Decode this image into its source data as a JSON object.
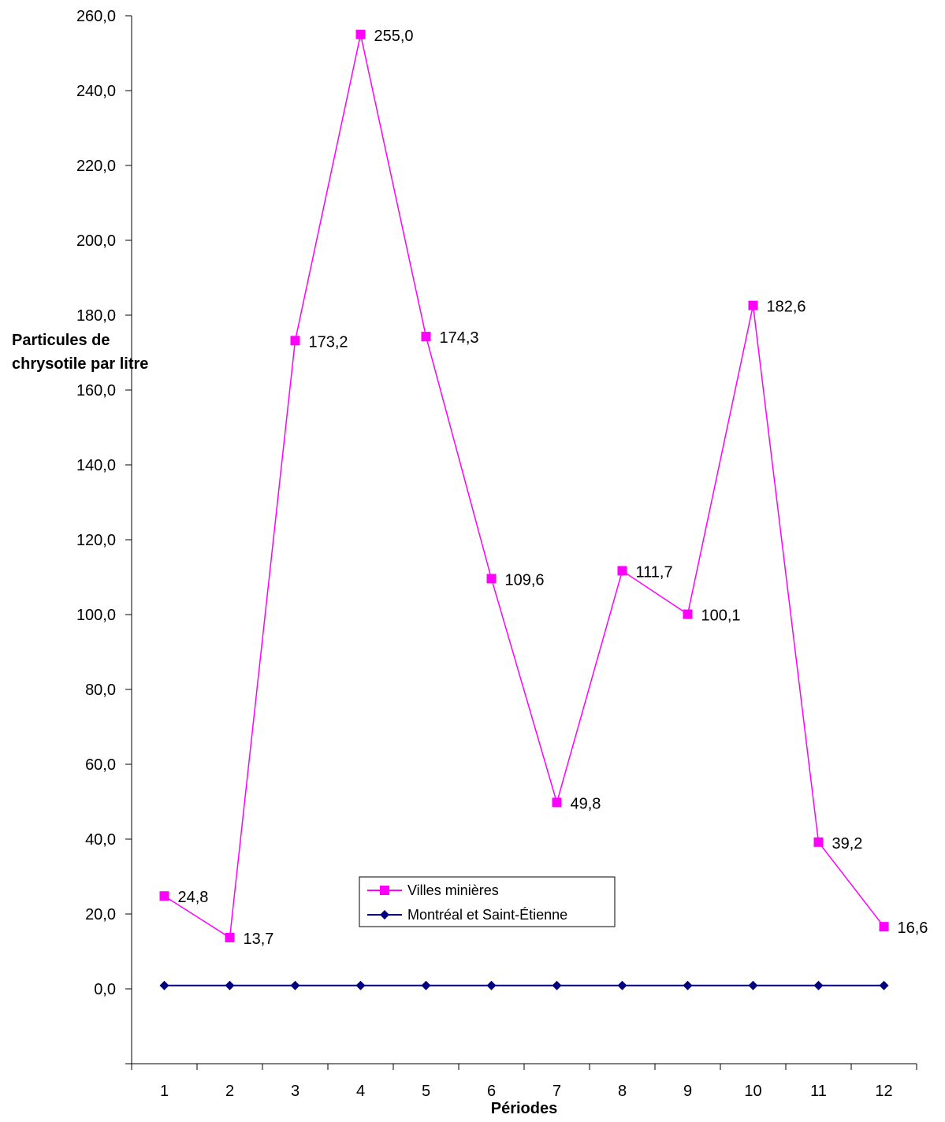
{
  "chart_data": {
    "type": "line",
    "title": "",
    "xlabel": "Périodes",
    "ylabel_lines": [
      "Particules de",
      "chrysotile par litre"
    ],
    "categories": [
      "1",
      "2",
      "3",
      "4",
      "5",
      "6",
      "7",
      "8",
      "9",
      "10",
      "11",
      "12"
    ],
    "ylim": [
      -20,
      260
    ],
    "yticks": [
      0,
      20,
      40,
      60,
      80,
      100,
      120,
      140,
      160,
      180,
      200,
      220,
      240,
      260
    ],
    "ytick_labels": [
      "0,0",
      "20,0",
      "40,0",
      "60,0",
      "80,0",
      "100,0",
      "120,0",
      "140,0",
      "160,0",
      "180,0",
      "200,0",
      "220,0",
      "240,0",
      "260,0"
    ],
    "grid": false,
    "legend_position": "inside-bottom-center",
    "series": [
      {
        "name": "Villes minières",
        "color": "#FF00FF",
        "marker": "square",
        "values": [
          24.8,
          13.7,
          173.2,
          255.0,
          174.3,
          109.6,
          49.8,
          111.7,
          100.1,
          182.6,
          39.2,
          16.6
        ],
        "labels": [
          "24,8",
          "13,7",
          "173,2",
          "255,0",
          "174,3",
          "109,6",
          "49,8",
          "111,7",
          "100,1",
          "182,6",
          "39,2",
          "16,6"
        ]
      },
      {
        "name": "Montréal et Saint-Étienne",
        "color": "#000080",
        "marker": "diamond",
        "values": [
          0.9,
          0.9,
          0.9,
          0.9,
          0.9,
          0.9,
          0.9,
          0.9,
          0.9,
          0.9,
          0.9,
          0.9
        ]
      }
    ]
  }
}
